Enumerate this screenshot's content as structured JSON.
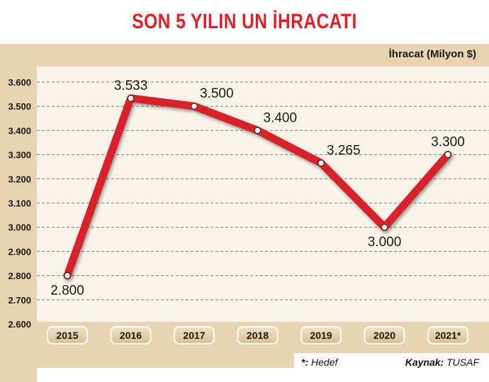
{
  "header": {
    "title": "SON 5 YILIN UN İHRACATI"
  },
  "footer": {
    "footnote_mark": "*:",
    "footnote_text": "Hedef",
    "source_label": "Kaynak:",
    "source_text": "TUSAF"
  },
  "chart_data": {
    "type": "line",
    "title": "SON 5 YILIN UN İHRACATI",
    "ylabel": "İhracat  (Milyon $)",
    "xlabel": "",
    "categories": [
      "2015",
      "2016",
      "2017",
      "2018",
      "2019",
      "2020",
      "2021*"
    ],
    "series": [
      {
        "values": [
          2800,
          3533,
          3500,
          3400,
          3265,
          3000,
          3300
        ],
        "labels": [
          "2.800",
          "3.533",
          "3.500",
          "3.400",
          "3.265",
          "3.000",
          "3.300"
        ],
        "label_side": [
          "below",
          "above",
          "above",
          "above",
          "above",
          "below",
          "above"
        ]
      }
    ],
    "yticks": [
      {
        "value": 2600,
        "label": "2.600"
      },
      {
        "value": 2700,
        "label": "2.700"
      },
      {
        "value": 2800,
        "label": "2.800"
      },
      {
        "value": 2900,
        "label": "2.900"
      },
      {
        "value": 3000,
        "label": "3.000"
      },
      {
        "value": 3100,
        "label": "3.100"
      },
      {
        "value": 3200,
        "label": "3.200"
      },
      {
        "value": 3300,
        "label": "3.300"
      },
      {
        "value": 3400,
        "label": "3.400"
      },
      {
        "value": 3500,
        "label": "3.500"
      },
      {
        "value": 3600,
        "label": "3.600"
      }
    ],
    "ylim": [
      2600,
      3600
    ],
    "grid": "horizontal-dashed",
    "legend": "none",
    "colors": {
      "line": "#d8232a",
      "title": "#e21f26",
      "band": "#e7d2b2",
      "pill": "#e6cfa9"
    }
  }
}
